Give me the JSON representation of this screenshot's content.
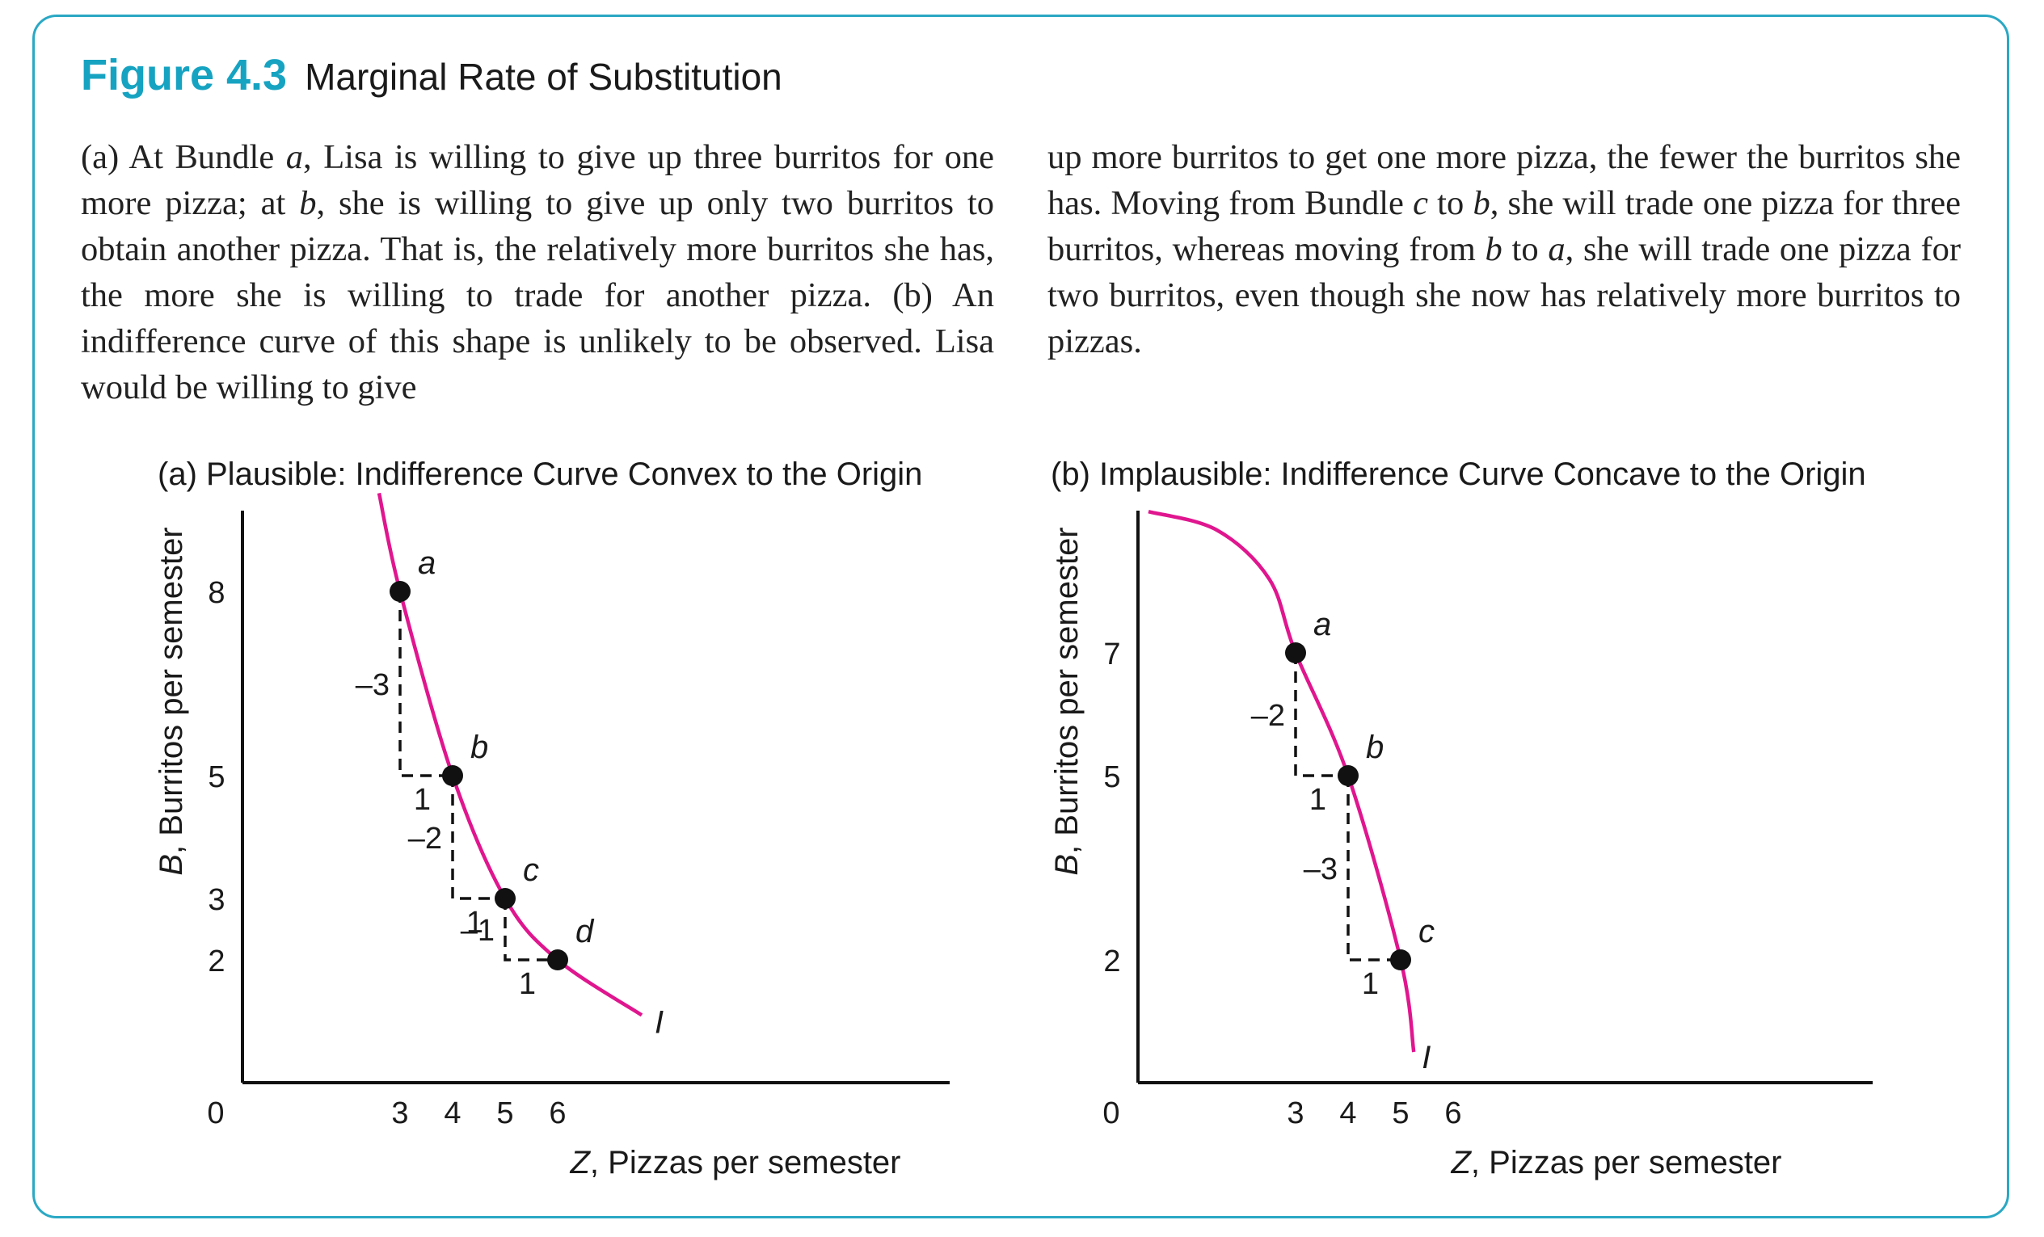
{
  "figure": {
    "number": "Figure 4.3",
    "title": "Marginal Rate of Substitution",
    "caption_left": "(a) At Bundle <i>a</i>, Lisa is willing to give up three burritos for one more pizza; at <i>b</i>, she is willing to give up only two burritos to obtain another pizza. That is, the relatively more burritos she has, the more she is willing to trade for another pizza. (b) An indifference curve of this shape is unlikely to be observed. Lisa would be willing to give",
    "caption_right": "up more burritos to get one more pizza, the fewer the burritos she has. Moving from Bundle <i>c</i> to <i>b</i>, she will trade one pizza for three burritos, whereas moving from <i>b</i> to <i>a</i>, she will trade one pizza for two burritos, even though she now has relatively more burritos to pizzas."
  },
  "colors": {
    "accent": "#16a3c2",
    "curve": "#e0168f",
    "border": "#2aa8c4"
  },
  "chart_data": [
    {
      "type": "line",
      "title": "(a) Plausible: Indifference Curve Convex to the Origin",
      "xlabel_var": "Z",
      "xlabel_rest": ", Pizzas per semester",
      "ylabel_var": "B",
      "ylabel_rest": ", Burritos per semester",
      "origin_label": "0",
      "xticks": [
        3,
        4,
        5,
        6
      ],
      "yticks": [
        2,
        3,
        5,
        8
      ],
      "xlim": [
        0,
        13.5
      ],
      "ylim": [
        0,
        9.5
      ],
      "curve_label": "I",
      "curve": [
        [
          2.6,
          9.6
        ],
        [
          3,
          8
        ],
        [
          4,
          5
        ],
        [
          5,
          3
        ],
        [
          6,
          2
        ],
        [
          7.6,
          1.1
        ]
      ],
      "points": [
        {
          "label": "a",
          "x": 3,
          "y": 8
        },
        {
          "label": "b",
          "x": 4,
          "y": 5
        },
        {
          "label": "c",
          "x": 5,
          "y": 3
        },
        {
          "label": "d",
          "x": 6,
          "y": 2
        }
      ],
      "steps": [
        {
          "from": "a",
          "to": "b",
          "dy_label": "–3",
          "dx_label": "1"
        },
        {
          "from": "b",
          "to": "c",
          "dy_label": "–2",
          "dx_label": "1"
        },
        {
          "from": "c",
          "to": "d",
          "dy_label": "–1",
          "dx_label": "1"
        }
      ]
    },
    {
      "type": "line",
      "title": "(b) Implausible: Indifference Curve Concave to the Origin",
      "xlabel_var": "Z",
      "xlabel_rest": ", Pizzas per semester",
      "ylabel_var": "B",
      "ylabel_rest": ", Burritos per semester",
      "origin_label": "0",
      "xticks": [
        3,
        4,
        5,
        6
      ],
      "yticks": [
        2,
        5,
        7
      ],
      "xlim": [
        0,
        14
      ],
      "ylim": [
        0,
        9.5
      ],
      "curve_label": "I",
      "curve": [
        [
          0.2,
          9.3
        ],
        [
          1.5,
          9.0
        ],
        [
          2.5,
          8.2
        ],
        [
          3,
          7
        ],
        [
          4,
          5
        ],
        [
          5,
          2
        ],
        [
          5.25,
          0.5
        ]
      ],
      "points": [
        {
          "label": "a",
          "x": 3,
          "y": 7
        },
        {
          "label": "b",
          "x": 4,
          "y": 5
        },
        {
          "label": "c",
          "x": 5,
          "y": 2
        }
      ],
      "steps": [
        {
          "from": "a",
          "to": "b",
          "dy_label": "–2",
          "dx_label": "1"
        },
        {
          "from": "b",
          "to": "c",
          "dy_label": "–3",
          "dx_label": "1"
        }
      ]
    }
  ]
}
